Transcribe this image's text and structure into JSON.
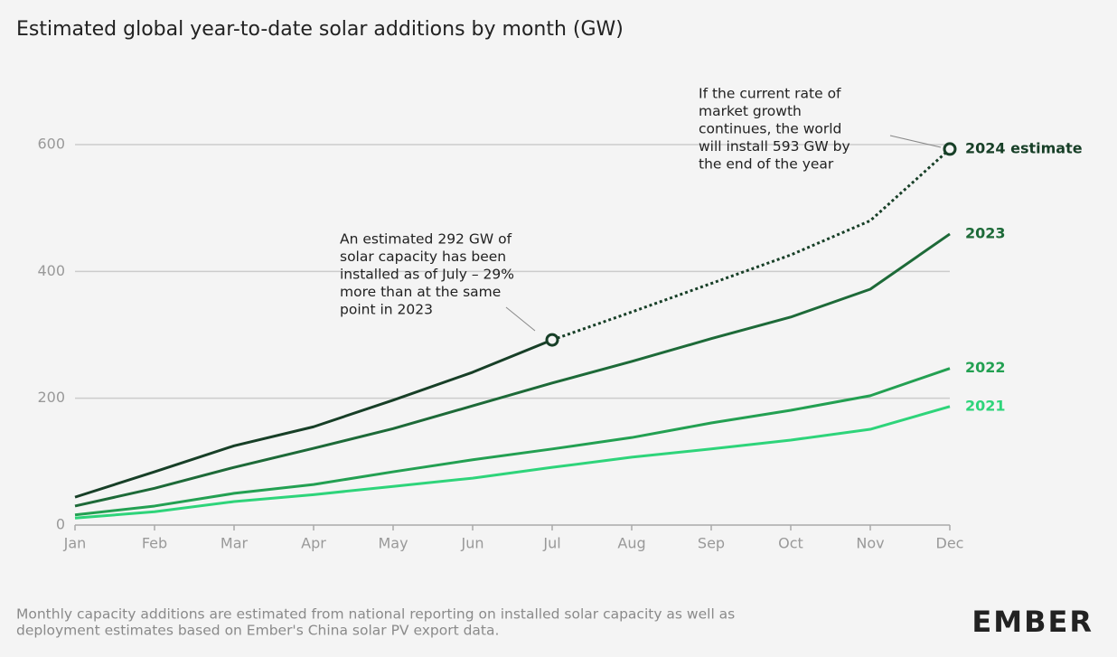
{
  "chart_data": {
    "type": "line",
    "title": "Estimated global year-to-date solar additions by month (GW)",
    "categories": [
      "Jan",
      "Feb",
      "Mar",
      "Apr",
      "May",
      "Jun",
      "Jul",
      "Aug",
      "Sep",
      "Oct",
      "Nov",
      "Dec"
    ],
    "ylim": [
      0,
      600
    ],
    "yticks": [
      0,
      200,
      400,
      600
    ],
    "grid": true,
    "series": [
      {
        "name": "2024 estimate",
        "color": "#173f27",
        "projected_from": "Jul",
        "values": [
          44,
          84,
          125,
          155,
          197,
          241,
          292,
          336,
          381,
          426,
          480,
          593
        ]
      },
      {
        "name": "2023",
        "color": "#1d6a38",
        "values": [
          30,
          58,
          91,
          121,
          152,
          188,
          224,
          258,
          294,
          328,
          372,
          459
        ]
      },
      {
        "name": "2022",
        "color": "#23a052",
        "values": [
          16,
          30,
          50,
          64,
          84,
          103,
          120,
          138,
          161,
          181,
          204,
          247
        ]
      },
      {
        "name": "2021",
        "color": "#2ed47a",
        "values": [
          11,
          21,
          37,
          48,
          61,
          74,
          91,
          107,
          120,
          134,
          151,
          187
        ]
      }
    ],
    "annotations": [
      {
        "series": 0,
        "category": "Jul",
        "lines": [
          "An estimated 292 GW of",
          "solar capacity has been",
          "installed as of July – 29%",
          "more than at the same",
          "point in 2023"
        ]
      },
      {
        "series": 0,
        "category": "Dec",
        "lines": [
          "If the current rate of",
          "market growth",
          "continues, the world",
          "will install 593 GW by",
          "the end of the year"
        ]
      }
    ],
    "note": [
      "Monthly capacity additions are estimated from national reporting on installed solar capacity as well as",
      "deployment estimates based on Ember's China solar PV export data."
    ],
    "brand": "EMBER"
  }
}
